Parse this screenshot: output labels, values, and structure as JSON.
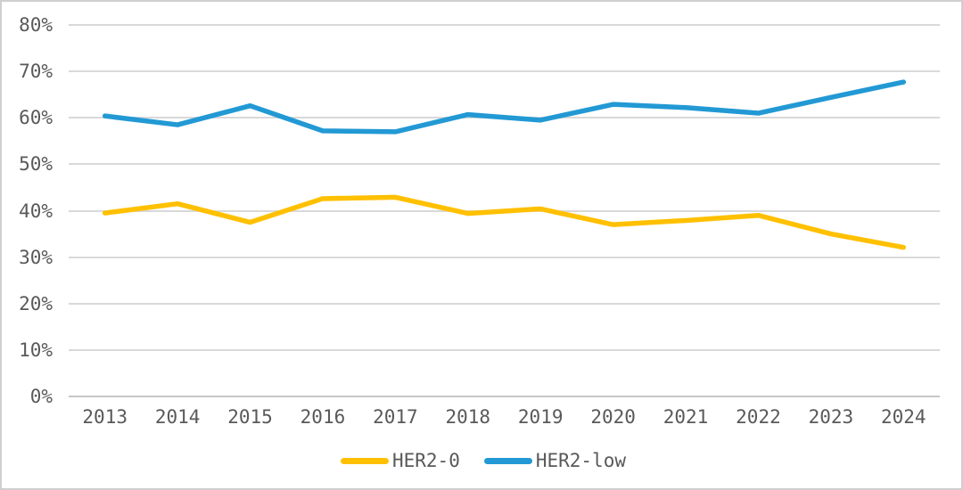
{
  "figure": {
    "background_color": "#FFFFFF",
    "border_color": "#CFCFCF"
  },
  "chart_data": {
    "type": "line",
    "title": "",
    "xlabel": "",
    "ylabel": "",
    "categories": [
      "2013",
      "2014",
      "2015",
      "2016",
      "2017",
      "2018",
      "2019",
      "2020",
      "2021",
      "2022",
      "2023",
      "2024"
    ],
    "series": [
      {
        "name": "HER2-0",
        "color": "#FFC000",
        "values": [
          39.5,
          41.5,
          37.5,
          42.6,
          42.9,
          39.4,
          40.4,
          37.0,
          37.9,
          39.0,
          35.0,
          32.1
        ]
      },
      {
        "name": "HER2-low",
        "color": "#2299D4",
        "values": [
          60.4,
          58.5,
          62.6,
          57.2,
          57.0,
          60.7,
          59.5,
          62.9,
          62.2,
          61.0,
          64.4,
          67.7
        ]
      }
    ],
    "ylim": [
      0,
      80
    ],
    "ytick_step": 10,
    "y_tick_labels": [
      "0%",
      "10%",
      "20%",
      "30%",
      "40%",
      "50%",
      "60%",
      "70%",
      "80%"
    ],
    "grid": true,
    "gridline_color": "#D9D9D9",
    "baseline_color": "#C6C6C6",
    "tick_label_color": "#595959",
    "line_width": 5.5,
    "legend_position": "bottom",
    "legend_labels": [
      "HER2-0",
      "HER2-low"
    ]
  }
}
